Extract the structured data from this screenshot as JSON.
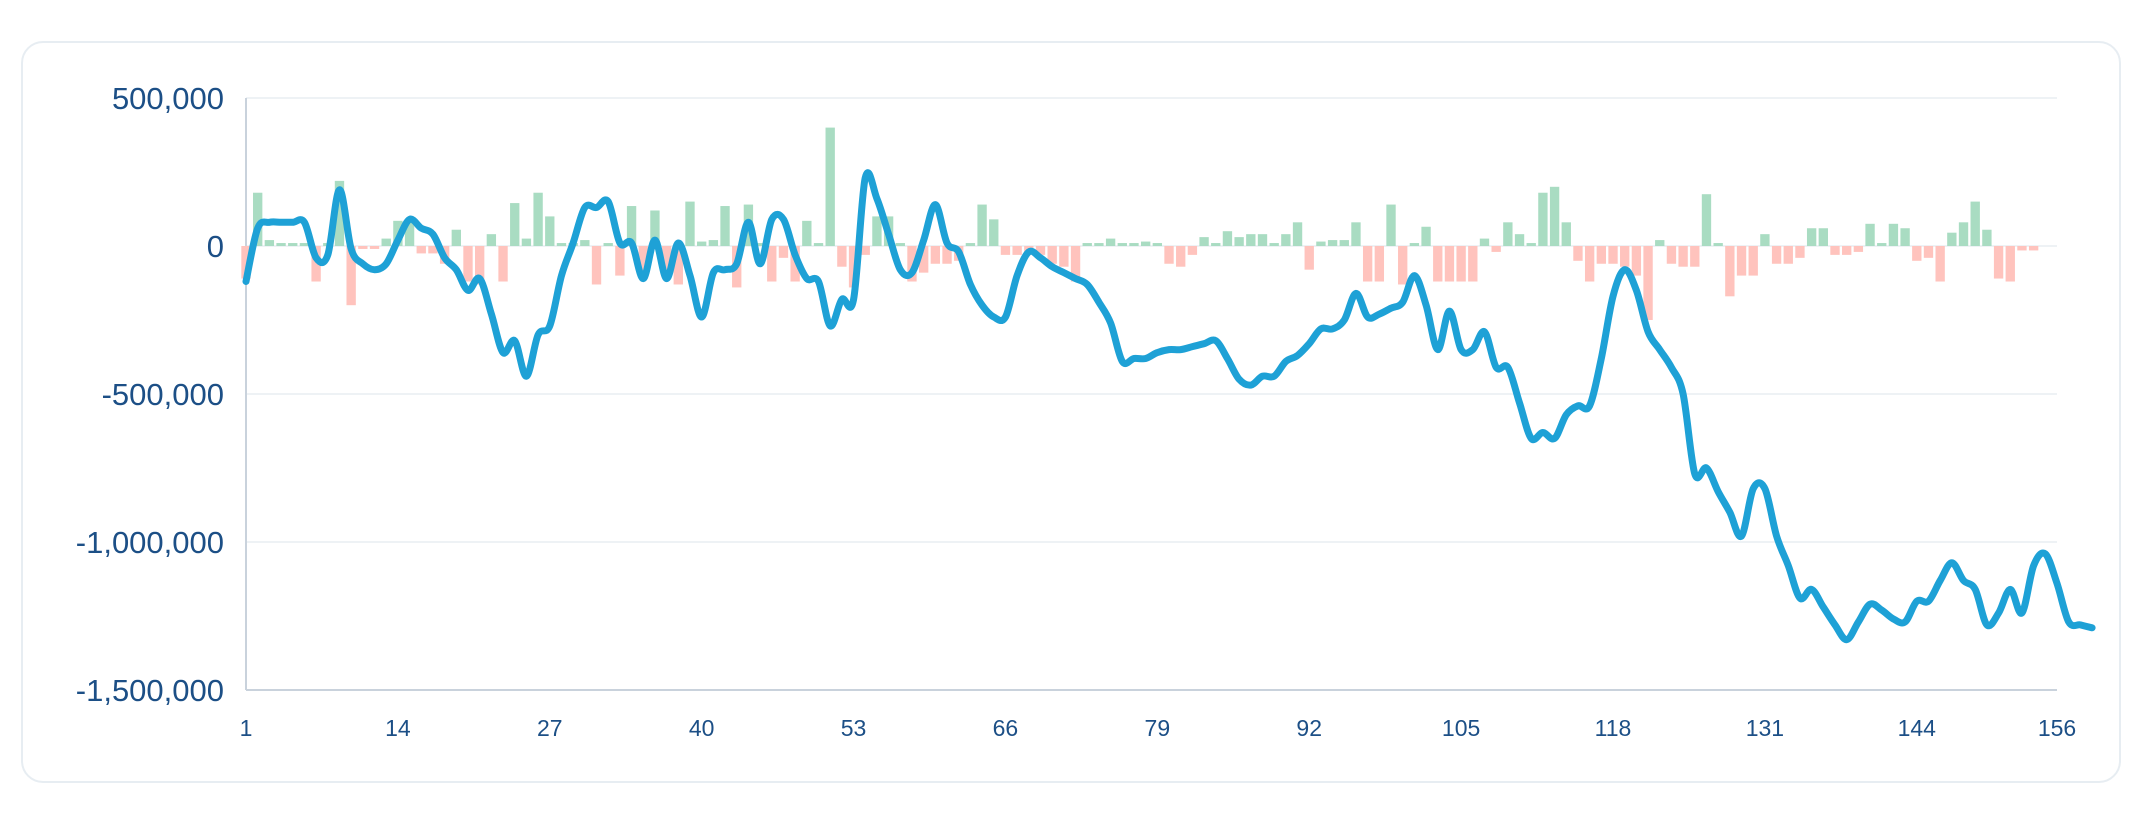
{
  "chart_data": {
    "type": "bar+line",
    "x_range": [
      1,
      156
    ],
    "x_ticks": [
      "1",
      "14",
      "27",
      "40",
      "53",
      "66",
      "79",
      "92",
      "105",
      "118",
      "131",
      "144",
      "156"
    ],
    "y_ticks": [
      500000,
      0,
      -500000,
      -1000000,
      -1500000
    ],
    "y_tick_labels": [
      "500,000",
      "0",
      "-500,000",
      "-1,000,000",
      "-1,500,000"
    ],
    "ylim": [
      -1500000,
      500000
    ],
    "grid": "horizontal",
    "colors": {
      "line": "#1ea1d6",
      "bar_positive": "#a9dcc2",
      "bar_negative": "#ffc3bd",
      "grid": "#e8edf2",
      "axis": "#c9d2dc",
      "tick_text": "#1c4f86"
    },
    "series": [
      {
        "type": "bar",
        "values": [
          -110000,
          180000,
          20000,
          10000,
          10000,
          10000,
          -120000,
          10000,
          220000,
          -200000,
          -10000,
          -10000,
          25000,
          85000,
          85000,
          -25000,
          -25000,
          -60000,
          55000,
          -120000,
          -130000,
          40000,
          -120000,
          145000,
          25000,
          180000,
          100000,
          10000,
          10000,
          20000,
          -130000,
          10000,
          -100000,
          135000,
          -110000,
          120000,
          -100000,
          -130000,
          150000,
          15000,
          20000,
          135000,
          -140000,
          140000,
          10000,
          -120000,
          -40000,
          -120000,
          85000,
          10000,
          400000,
          -70000,
          -140000,
          -30000,
          100000,
          100000,
          10000,
          -120000,
          -90000,
          -60000,
          -60000,
          -50000,
          10000,
          140000,
          90000,
          -30000,
          -30000,
          -30000,
          -30000,
          -60000,
          -70000,
          -120000,
          10000,
          10000,
          25000,
          10000,
          10000,
          15000,
          10000,
          -60000,
          -70000,
          -30000,
          30000,
          10000,
          50000,
          30000,
          40000,
          40000,
          10000,
          40000,
          80000,
          -80000,
          15000,
          20000,
          20000,
          80000,
          -120000,
          -120000,
          140000,
          -130000,
          10000,
          65000,
          -120000,
          -120000,
          -120000,
          -120000,
          25000,
          -20000,
          80000,
          40000,
          10000,
          180000,
          200000,
          80000,
          -50000,
          -120000,
          -60000,
          -60000,
          -70000,
          -100000,
          -250000,
          20000,
          -60000,
          -70000,
          -70000,
          175000,
          10000,
          -170000,
          -100000,
          -100000,
          40000,
          -60000,
          -60000,
          -40000,
          60000,
          60000,
          -30000,
          -30000,
          -20000,
          75000,
          10000,
          75000,
          60000,
          -50000,
          -40000,
          -120000,
          45000,
          80000,
          150000,
          55000,
          -110000,
          -120000,
          -15000,
          -15000
        ]
      },
      {
        "type": "line",
        "values": [
          -120000,
          60000,
          80000,
          80000,
          80000,
          80000,
          -40000,
          -30000,
          190000,
          -10000,
          -60000,
          -80000,
          -60000,
          20000,
          90000,
          60000,
          40000,
          -40000,
          -80000,
          -150000,
          -110000,
          -230000,
          -360000,
          -320000,
          -440000,
          -300000,
          -270000,
          -100000,
          10000,
          130000,
          130000,
          150000,
          10000,
          10000,
          -110000,
          20000,
          -110000,
          10000,
          -100000,
          -240000,
          -90000,
          -80000,
          -60000,
          80000,
          -60000,
          90000,
          90000,
          -30000,
          -110000,
          -120000,
          -270000,
          -180000,
          -180000,
          230000,
          160000,
          40000,
          -80000,
          -90000,
          20000,
          140000,
          10000,
          -20000,
          -130000,
          -200000,
          -240000,
          -240000,
          -100000,
          -20000,
          -40000,
          -70000,
          -90000,
          -110000,
          -130000,
          -190000,
          -260000,
          -390000,
          -380000,
          -380000,
          -360000,
          -350000,
          -350000,
          -340000,
          -330000,
          -320000,
          -380000,
          -450000,
          -470000,
          -440000,
          -440000,
          -390000,
          -370000,
          -330000,
          -280000,
          -280000,
          -250000,
          -160000,
          -240000,
          -230000,
          -210000,
          -190000,
          -100000,
          -200000,
          -350000,
          -220000,
          -350000,
          -350000,
          -290000,
          -410000,
          -410000,
          -530000,
          -650000,
          -630000,
          -650000,
          -570000,
          -540000,
          -540000,
          -380000,
          -170000,
          -80000,
          -150000,
          -290000,
          -350000,
          -410000,
          -500000,
          -770000,
          -750000,
          -830000,
          -900000,
          -980000,
          -820000,
          -820000,
          -980000,
          -1080000,
          -1190000,
          -1160000,
          -1220000,
          -1280000,
          -1330000,
          -1270000,
          -1210000,
          -1230000,
          -1260000,
          -1270000,
          -1200000,
          -1200000,
          -1130000,
          -1070000,
          -1130000,
          -1160000,
          -1280000,
          -1240000,
          -1160000,
          -1240000,
          -1080000,
          -1040000,
          -1140000,
          -1270000,
          -1280000,
          -1290000
        ]
      }
    ]
  }
}
